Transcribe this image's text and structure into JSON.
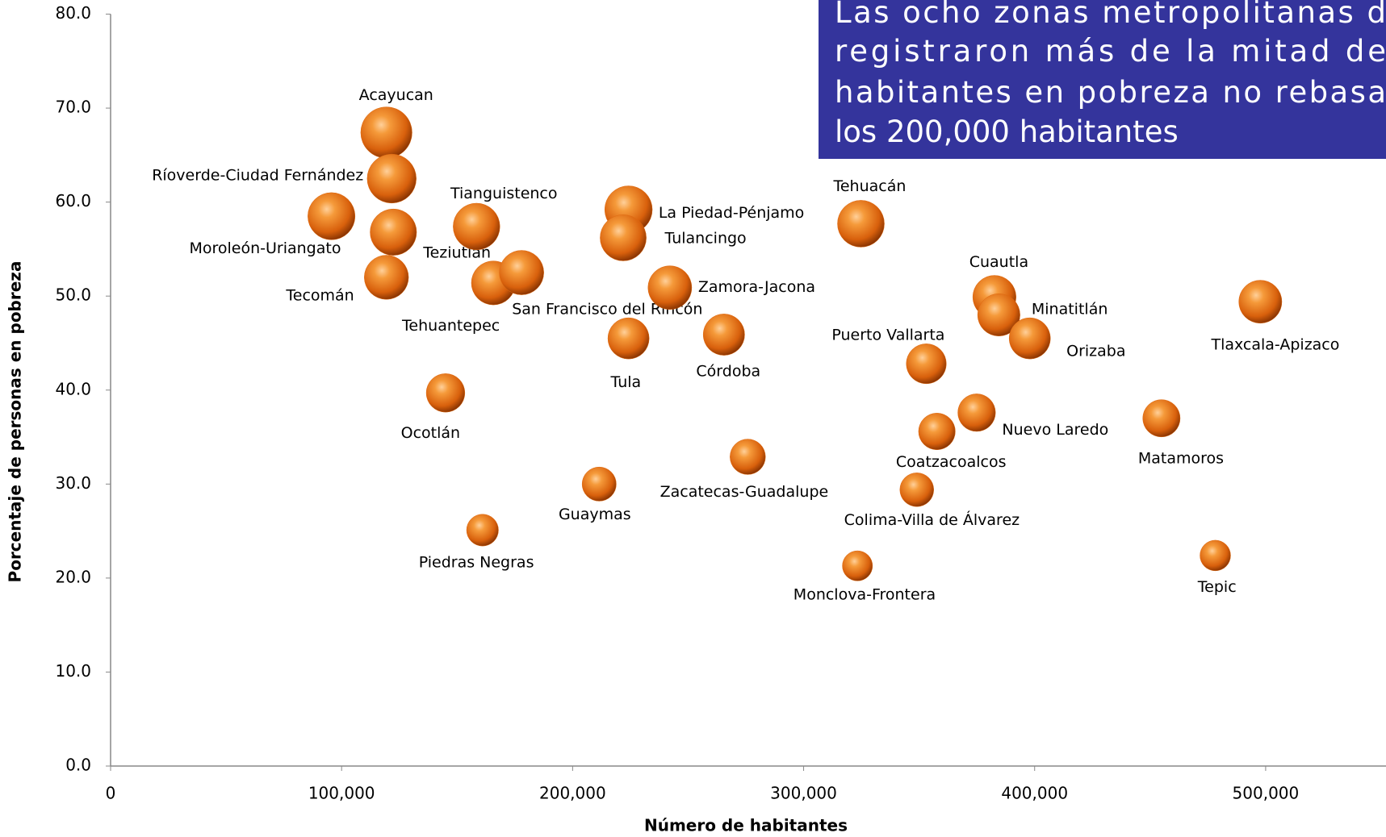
{
  "chart_data": {
    "type": "scatter",
    "xlabel": "Número de habitantes",
    "ylabel": "Porcentaje de personas en pobreza",
    "annotation": [
      "Las ocho zonas metropolitanas d",
      "registraron más de la mitad de",
      "habitantes en pobreza no rebasa",
      "los 200,000 habitantes"
    ],
    "annotation_color": "#34349c",
    "color": "#e06a10",
    "labels": [
      "Acayucan",
      "Ríoverde-Ciudad Fernández",
      "Moroleón-Uriangato",
      "Teziutlán",
      "Tecomán",
      "Tianguistenco",
      "Tehuantepec",
      "San Francisco del Rincón",
      "La Piedad-Pénjamo",
      "Tulancingo",
      "Zamora-Jacona",
      "Tula",
      "Córdoba",
      "Tehuacán",
      "Cuautla",
      "Minatitlán",
      "Orizaba",
      "Puerto Vallarta",
      "Tlaxcala-Apizaco",
      "Ocotlán",
      "Nuevo Laredo",
      "Coatzacoalcos",
      "Matamoros",
      "Zacatecas-Guadalupe",
      "Guaymas",
      "Colima-Villa de Álvarez",
      "Piedras Negras",
      "Monclova-Frontera",
      "Tepic"
    ],
    "x": [
      119400,
      121700,
      95600,
      122400,
      119400,
      158400,
      165700,
      177900,
      224200,
      221900,
      242100,
      224200,
      265500,
      324800,
      382600,
      384500,
      397900,
      353100,
      497700,
      145000,
      374900,
      357700,
      454900,
      275800,
      211500,
      349000,
      161000,
      323300,
      478200
    ],
    "values": [
      67.4,
      62.5,
      58.5,
      56.8,
      52.0,
      57.4,
      51.4,
      52.5,
      59.2,
      56.2,
      50.9,
      45.5,
      45.9,
      57.7,
      49.9,
      48.0,
      45.5,
      42.8,
      49.4,
      39.7,
      37.6,
      35.6,
      37.0,
      32.9,
      30.0,
      29.4,
      25.1,
      21.3,
      22.4
    ],
    "xlim": [
      0,
      550000
    ],
    "xticks": [
      0,
      {
        "value": 100000,
        "label": "100,000"
      },
      {
        "value": 200000,
        "label": "200,000"
      },
      {
        "value": 300000,
        "label": "300,000"
      },
      {
        "value": 400000,
        "label": "400,000"
      },
      {
        "value": 500000,
        "label": "500,000"
      }
    ],
    "ylim": [
      0,
      80
    ],
    "yticks": [
      {
        "value": 0,
        "label": "0.0"
      },
      {
        "value": 10,
        "label": "10.0"
      },
      {
        "value": 20,
        "label": "20.0"
      },
      {
        "value": 30,
        "label": "30.0"
      },
      {
        "value": 40,
        "label": "40.0"
      },
      {
        "value": 50,
        "label": "50.0"
      },
      {
        "value": 60,
        "label": "60.0"
      },
      {
        "value": 70,
        "label": "70.0"
      },
      {
        "value": 80,
        "label": "80.0"
      }
    ],
    "grid": false
  }
}
